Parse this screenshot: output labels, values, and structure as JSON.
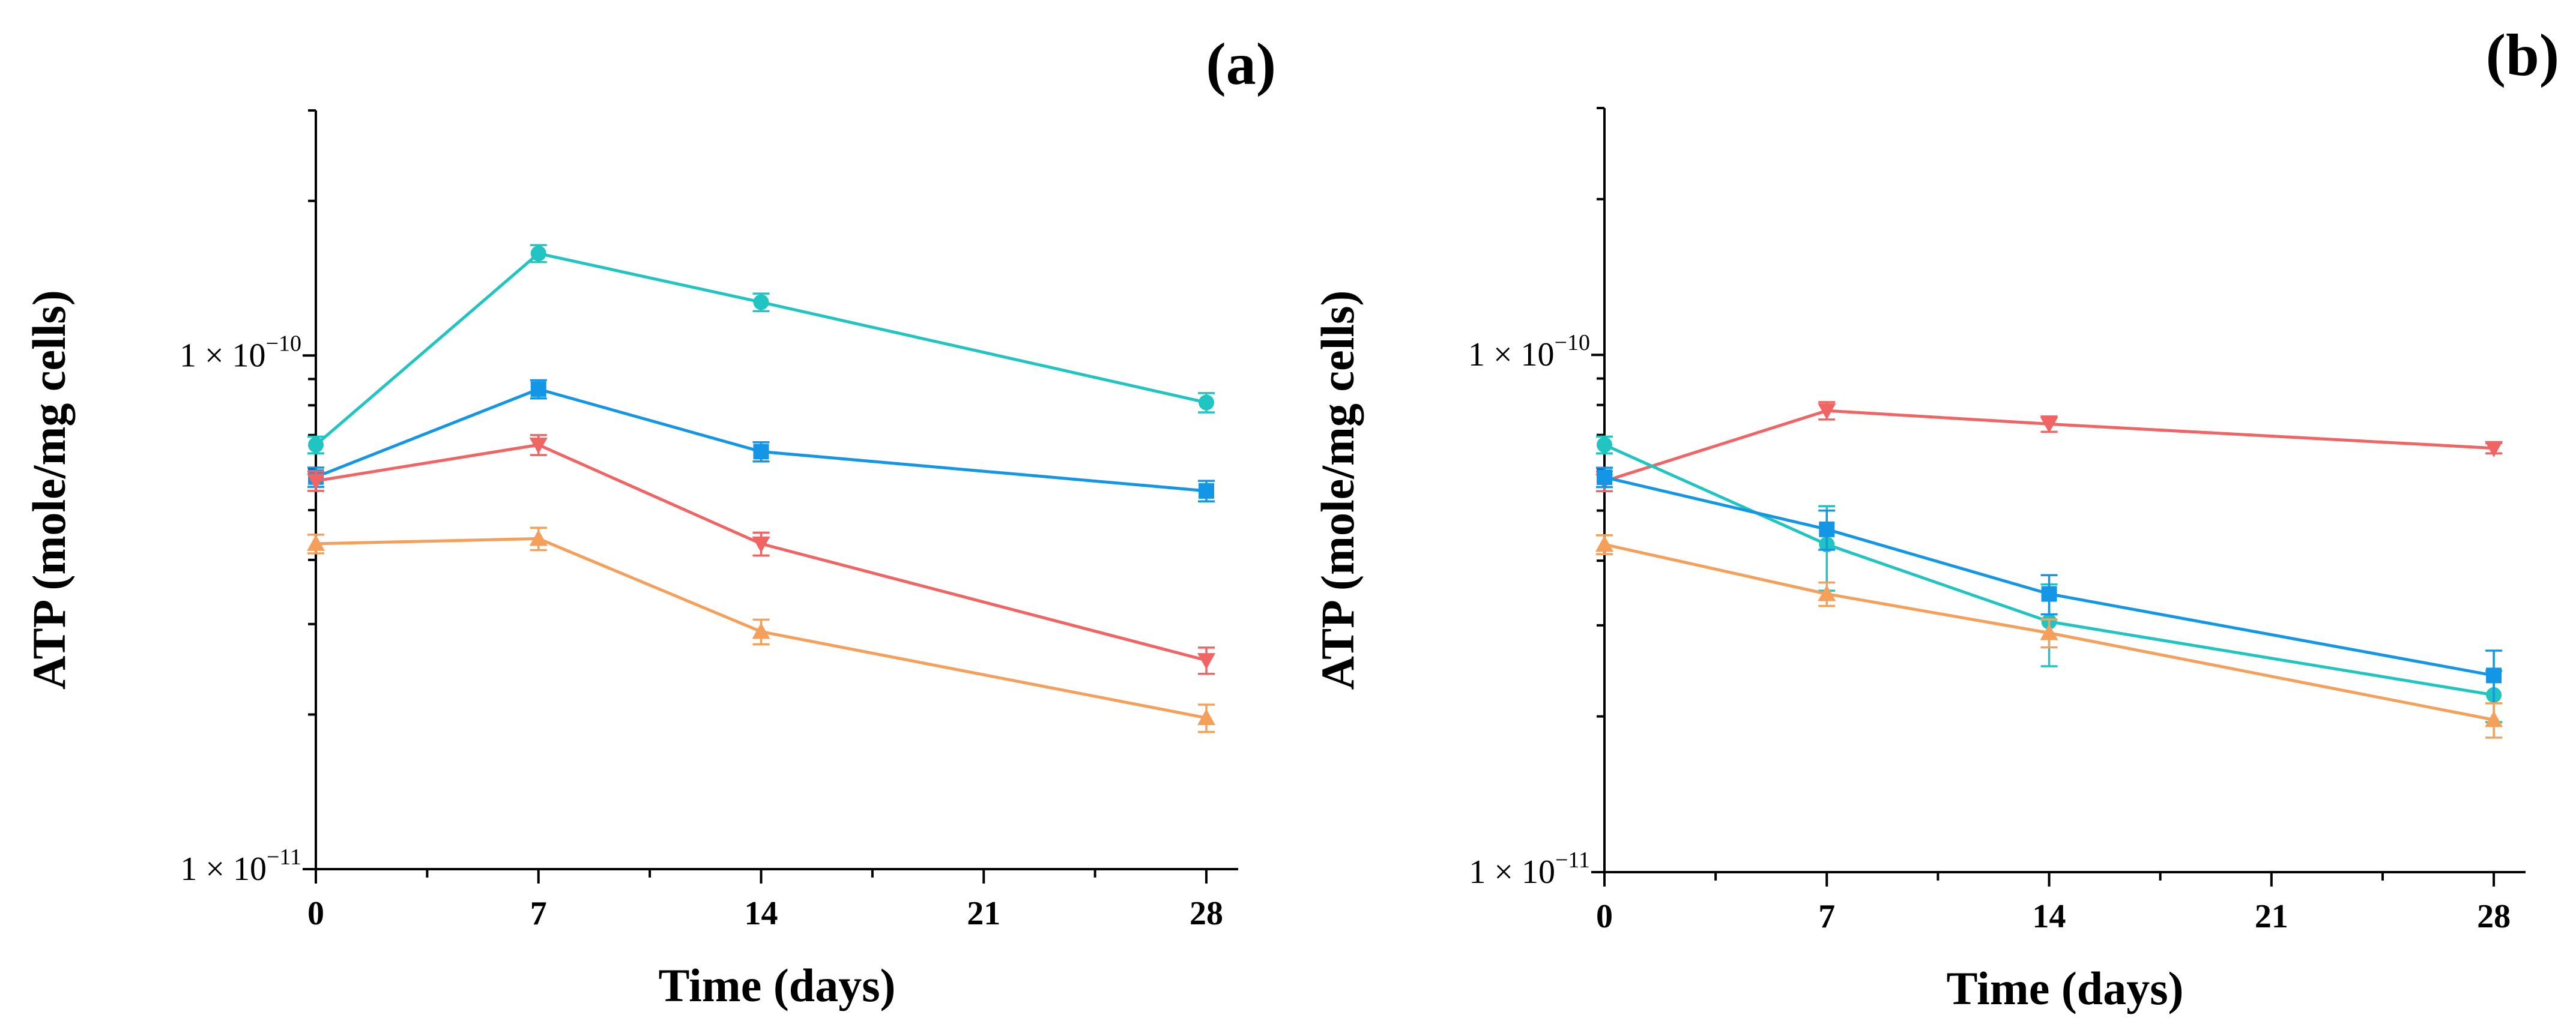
{
  "chart_data": [
    {
      "type": "line",
      "panel_label": "(a)",
      "xlabel": "Time (days)",
      "ylabel": "ATP (mole/mg cells)",
      "yscale": "log",
      "ylim": [
        1e-11,
        3e-10
      ],
      "xlim": [
        0,
        29
      ],
      "x_ticks": [
        0,
        7,
        14,
        21,
        28
      ],
      "y_tick_labels": [
        {
          "value": 1e-10,
          "mantissa": "1 × 10",
          "exponent": "−10"
        },
        {
          "value": 1e-11,
          "mantissa": "1 × 10",
          "exponent": "−11"
        }
      ],
      "series": [
        {
          "name": "cyan-circle",
          "color": "#20c4c0",
          "marker": "circle",
          "x": [
            0,
            7,
            14,
            28
          ],
          "values": [
            6.7e-11,
            1.58e-10,
            1.27e-10,
            8.1e-11
          ],
          "errors": [
            2.5e-12,
            6e-12,
            5e-12,
            3.5e-12
          ]
        },
        {
          "name": "blue-square",
          "color": "#1496e6",
          "marker": "square",
          "x": [
            0,
            7,
            14,
            28
          ],
          "values": [
            5.8e-11,
            8.6e-11,
            6.5e-11,
            5.45e-11
          ],
          "errors": [
            2.5e-12,
            3.5e-12,
            2.8e-12,
            2.5e-12
          ]
        },
        {
          "name": "red-down-triangle",
          "color": "#f06464",
          "marker": "triangle-down",
          "x": [
            0,
            7,
            14,
            28
          ],
          "values": [
            5.7e-11,
            6.7e-11,
            4.3e-11,
            2.55e-11
          ],
          "errors": [
            2.5e-12,
            3e-12,
            2.2e-12,
            1.5e-12
          ]
        },
        {
          "name": "orange-up-triangle",
          "color": "#f5a05a",
          "marker": "triangle-up",
          "x": [
            0,
            7,
            14,
            28
          ],
          "values": [
            4.3e-11,
            4.4e-11,
            2.9e-11,
            1.97e-11
          ],
          "errors": [
            1.8e-12,
            2.2e-12,
            1.6e-12,
            1.2e-12
          ]
        }
      ]
    },
    {
      "type": "line",
      "panel_label": "(b)",
      "xlabel": "Time (days)",
      "ylabel": "ATP (mole/mg cells)",
      "yscale": "log",
      "ylim": [
        1e-11,
        3e-10
      ],
      "xlim": [
        0,
        29
      ],
      "x_ticks": [
        0,
        7,
        14,
        21,
        28
      ],
      "y_tick_labels": [
        {
          "value": 1e-10,
          "mantissa": "1 × 10",
          "exponent": "−10"
        },
        {
          "value": 1e-11,
          "mantissa": "1 × 10",
          "exponent": "−11"
        }
      ],
      "series": [
        {
          "name": "red-down-triangle",
          "color": "#f06464",
          "marker": "triangle-down",
          "x": [
            0,
            7,
            14,
            28
          ],
          "values": [
            5.7e-11,
            7.8e-11,
            7.35e-11,
            6.6e-11
          ],
          "errors": [
            2.5e-12,
            3e-12,
            2.5e-12,
            1.5e-12
          ]
        },
        {
          "name": "cyan-circle",
          "color": "#20c4c0",
          "marker": "circle",
          "x": [
            0,
            7,
            14,
            28
          ],
          "values": [
            6.7e-11,
            4.3e-11,
            3.05e-11,
            2.2e-11
          ],
          "errors": [
            2.5e-12,
            8e-12,
            5.5e-12,
            2.5e-12
          ]
        },
        {
          "name": "blue-square",
          "color": "#1496e6",
          "marker": "square",
          "x": [
            0,
            7,
            14,
            28
          ],
          "values": [
            5.8e-11,
            4.6e-11,
            3.45e-11,
            2.4e-11
          ],
          "errors": [
            2.5e-12,
            4e-12,
            3e-12,
            2.8e-12
          ]
        },
        {
          "name": "orange-up-triangle",
          "color": "#f5a05a",
          "marker": "triangle-up",
          "x": [
            0,
            7,
            14,
            28
          ],
          "values": [
            4.3e-11,
            3.45e-11,
            2.9e-11,
            1.97e-11
          ],
          "errors": [
            1.8e-12,
            1.8e-12,
            1.8e-12,
            1.5e-12
          ]
        }
      ]
    }
  ]
}
